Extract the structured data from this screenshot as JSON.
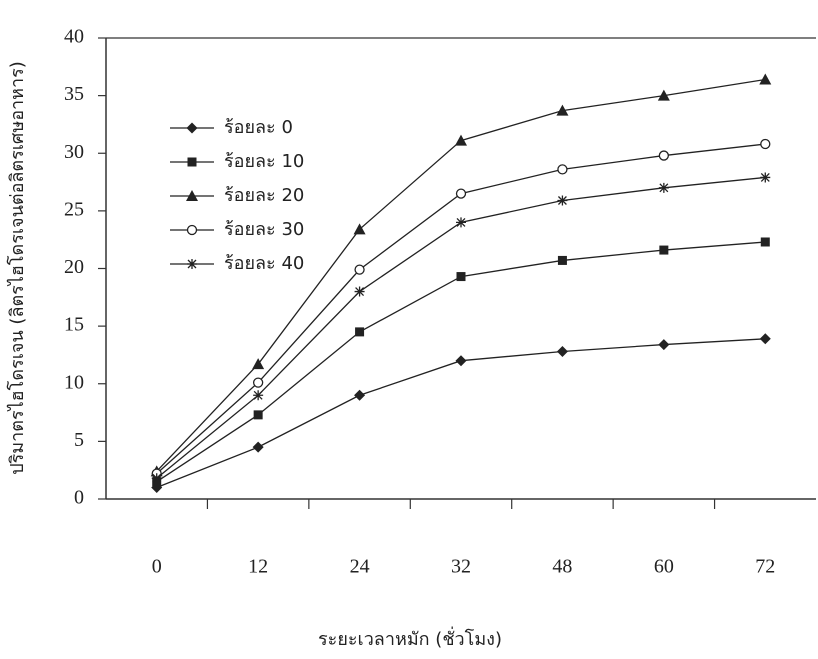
{
  "chart_data": {
    "type": "line",
    "x_label": "ระยะเวลาหมัก (ชั่วโมง)",
    "y_label": "ปริมาตรไฮโดรเจน (ลิตรไฮโดรเจนต่อลิตรเศษอาหาร)",
    "categories": [
      "0",
      "12",
      "24",
      "32",
      "48",
      "60",
      "72"
    ],
    "series": [
      {
        "name": "ร้อยละ 0",
        "color": "#222222",
        "marker": "diamond",
        "values": [
          1.0,
          4.5,
          9.0,
          12.0,
          12.8,
          13.4,
          13.9
        ]
      },
      {
        "name": "ร้อยละ 10",
        "color": "#222222",
        "marker": "square",
        "values": [
          1.5,
          7.3,
          14.5,
          19.3,
          20.7,
          21.6,
          22.3
        ]
      },
      {
        "name": "ร้อยละ 20",
        "color": "#222222",
        "marker": "triangle",
        "values": [
          2.4,
          11.7,
          23.4,
          31.1,
          33.7,
          35.0,
          36.4
        ]
      },
      {
        "name": "ร้อยละ 30",
        "color": "#222222",
        "marker": "circle",
        "values": [
          2.2,
          10.1,
          19.9,
          26.5,
          28.6,
          29.8,
          30.8
        ]
      },
      {
        "name": "ร้อยละ 40",
        "color": "#222222",
        "marker": "star",
        "values": [
          1.8,
          9.0,
          18.0,
          24.0,
          25.9,
          27.0,
          27.9
        ]
      }
    ],
    "ylim": [
      0,
      40
    ],
    "yticks": [
      0,
      5,
      10,
      15,
      20,
      25,
      30,
      35,
      40
    ],
    "legend": "upper left",
    "grid": false
  }
}
